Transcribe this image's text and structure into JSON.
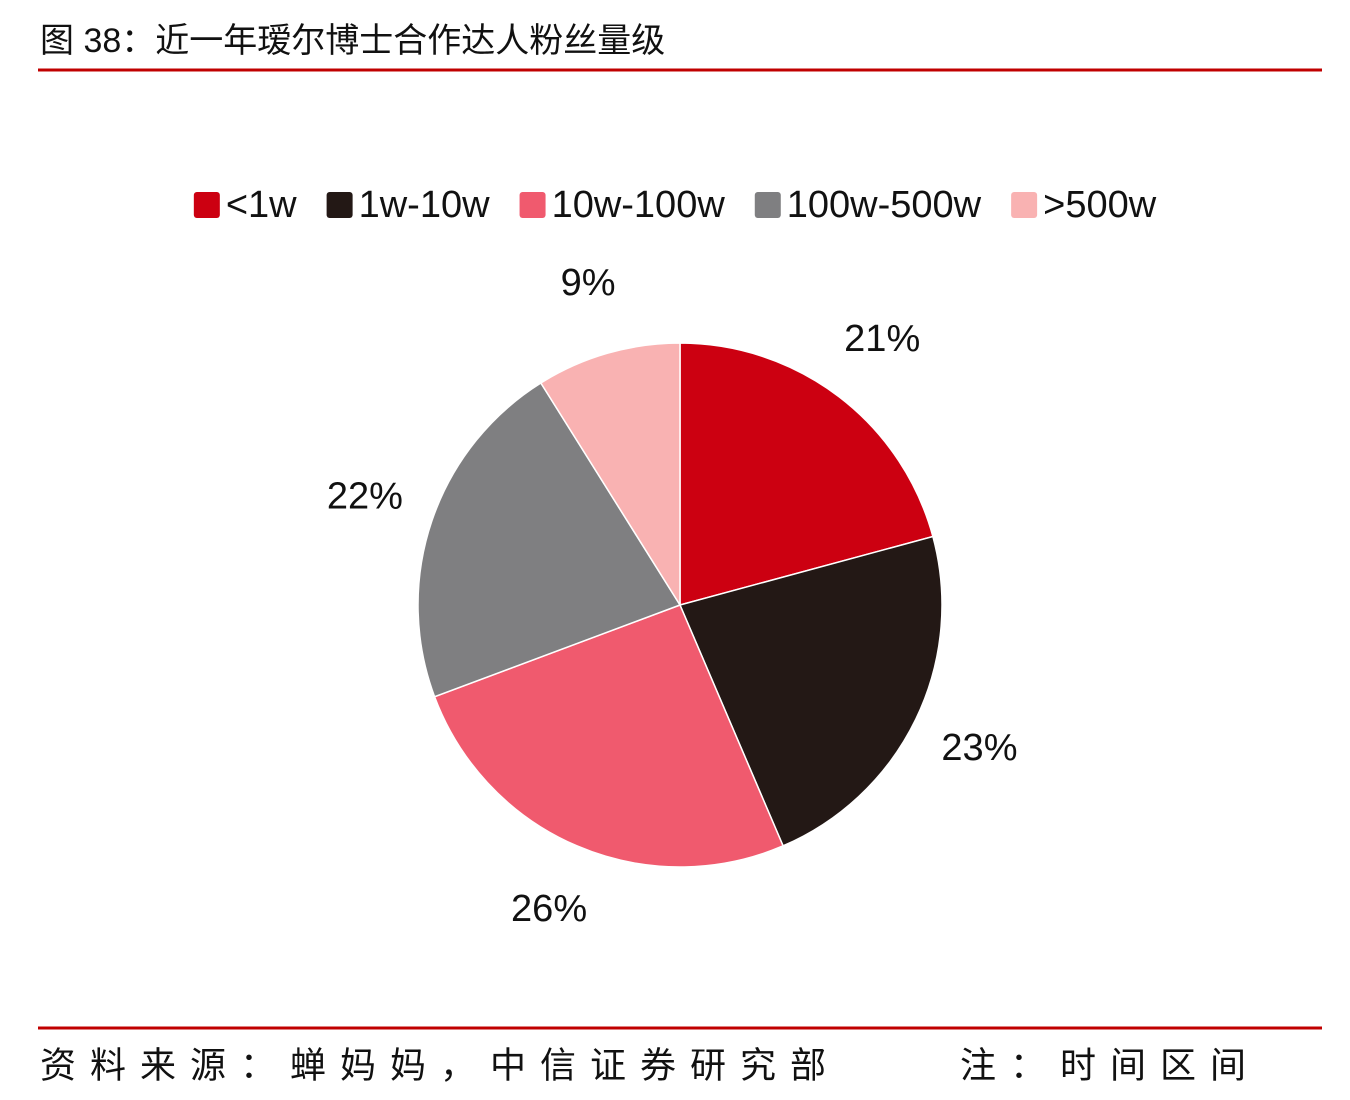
{
  "chart_data": {
    "type": "pie",
    "title": "图 38：近一年瑷尔博士合作达人粉丝量级",
    "categories": [
      "<1w",
      "1w-10w",
      "10w-100w",
      "100w-500w",
      ">500w"
    ],
    "values": [
      21,
      23,
      26,
      22,
      9
    ],
    "value_labels": [
      "21%",
      "23%",
      "26%",
      "22%",
      "9%"
    ],
    "colors": [
      "#cc0011",
      "#231815",
      "#f05a6e",
      "#7f7f81",
      "#f9b2b2"
    ],
    "legend": "top",
    "source": "资料来源：蝉妈妈，中信证券研究部",
    "note": "注：时间区间"
  }
}
